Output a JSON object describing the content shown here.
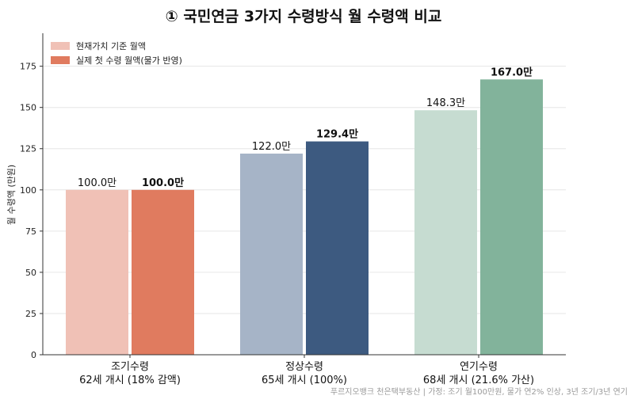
{
  "chart_data": {
    "type": "bar",
    "title": "① 국민연금 3가지 수령방식 월 수령액 비교",
    "ylabel": "월 수령액 (만원)",
    "xlabel": "",
    "ylim": [
      0,
      195
    ],
    "yticks": [
      0,
      25,
      50,
      75,
      100,
      125,
      150,
      175
    ],
    "grid": true,
    "legend_position": "top-left",
    "categories": [
      {
        "line1": "조기수령",
        "line2": "62세 개시 (18% 감액)"
      },
      {
        "line1": "정상수령",
        "line2": "65세 개시 (100%)"
      },
      {
        "line1": "연기수령",
        "line2": "68세 개시 (21.6% 가산)"
      }
    ],
    "series": [
      {
        "name": "현재가치 기준 월액",
        "values": [
          100.0,
          122.0,
          148.3
        ],
        "labels": [
          "100.0만",
          "122.0만",
          "148.3만"
        ],
        "colors": [
          "#f0c1b6",
          "#a6b4c7",
          "#c6dcd1"
        ]
      },
      {
        "name": "실제 첫 수령 월액(물가 반영)",
        "values": [
          100.0,
          129.4,
          167.0
        ],
        "labels": [
          "100.0만",
          "129.4만",
          "167.0만"
        ],
        "colors": [
          "#e07b5f",
          "#3d5a80",
          "#82b39b"
        ]
      }
    ],
    "legend_colors": [
      "#f0c1b6",
      "#e07b5f"
    ],
    "footnote": "푸르지오뱅크 천은택부동산 | 가정: 조기 월100만원, 물가 연2% 인상, 3년 조기/3년 연기"
  }
}
